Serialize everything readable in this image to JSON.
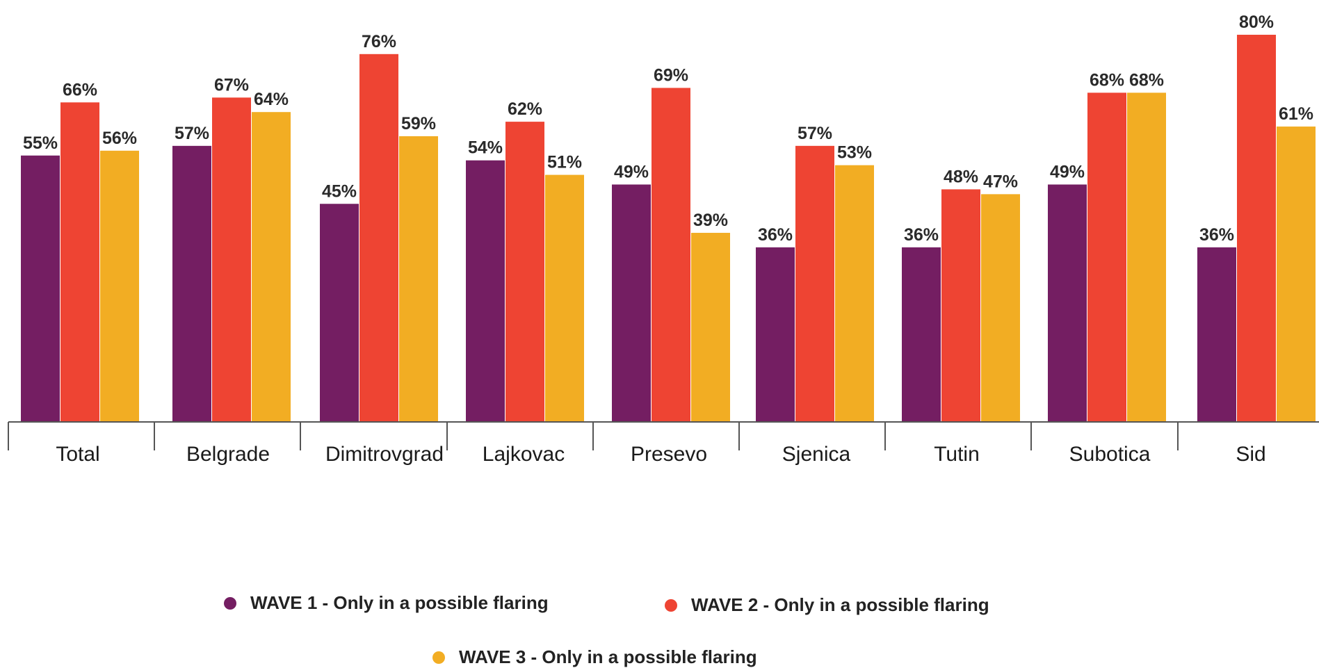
{
  "chart_data": {
    "type": "bar",
    "categories": [
      "Total",
      "Belgrade",
      "Dimitrovgrad",
      "Lajkovac",
      "Presevo",
      "Sjenica",
      "Tutin",
      "Subotica",
      "Sid"
    ],
    "series": [
      {
        "name": "WAVE 1 - Only in a possible flaring",
        "color": "#741e62",
        "values": [
          55,
          57,
          45,
          54,
          49,
          36,
          36,
          49,
          36
        ],
        "labels": [
          "55%",
          "57%",
          "45%",
          "54%",
          "49%",
          "36%",
          "36%",
          "49%",
          "36%"
        ]
      },
      {
        "name": "WAVE 2 - Only in a possible flaring",
        "color": "#ee4433",
        "values": [
          66,
          67,
          76,
          62,
          69,
          57,
          48,
          68,
          80
        ],
        "labels": [
          "66%",
          "67%",
          "76%",
          "62%",
          "69%",
          "57%",
          "48%",
          "68%",
          "80%"
        ]
      },
      {
        "name": "WAVE 3 - Only in a possible flaring",
        "color": "#f2ad23",
        "values": [
          56,
          64,
          59,
          51,
          39,
          53,
          47,
          68,
          61
        ],
        "labels": [
          "56%",
          "64%",
          "59%",
          "51%",
          "39%",
          "53%",
          "47%",
          "68%",
          "61%"
        ]
      }
    ],
    "legend_position": "bottom",
    "grid": false
  }
}
